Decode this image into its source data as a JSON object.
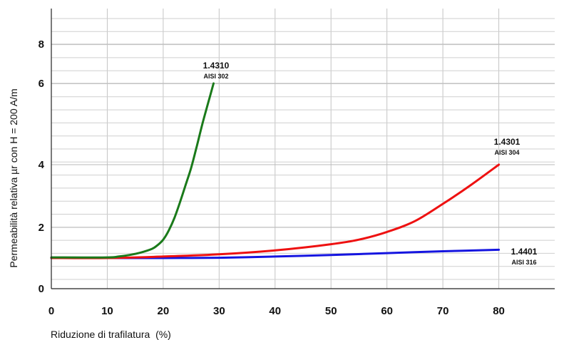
{
  "chart_data": {
    "type": "line",
    "title": "",
    "xlabel": "Riduzione di trafilatura  (%)",
    "ylabel": "Permeabilità relativa µr con H = 200 A/m",
    "xlim": [
      0,
      90
    ],
    "x_ticks": [
      0,
      10,
      20,
      30,
      40,
      50,
      60,
      70,
      80
    ],
    "y_ticks": [
      0,
      2,
      4,
      6,
      8
    ],
    "y_tick_labels": [
      "0",
      "2",
      "4",
      "6",
      "8"
    ],
    "grid": true,
    "series": [
      {
        "name": "1.4310",
        "subname": "AISI 302",
        "color": "#1a7a1a",
        "points": [
          [
            0,
            1.02
          ],
          [
            10,
            1.02
          ],
          [
            12,
            1.05
          ],
          [
            14,
            1.1
          ],
          [
            16,
            1.18
          ],
          [
            18,
            1.3
          ],
          [
            19,
            1.42
          ],
          [
            20,
            1.6
          ],
          [
            21,
            1.9
          ],
          [
            22,
            2.3
          ],
          [
            23,
            2.8
          ],
          [
            24,
            3.35
          ],
          [
            25,
            3.9
          ],
          [
            26,
            4.45
          ],
          [
            27,
            5.0
          ],
          [
            28,
            5.5
          ],
          [
            29,
            6.0
          ]
        ]
      },
      {
        "name": "1.4301",
        "subname": "AISI 304",
        "color": "#ee1111",
        "points": [
          [
            0,
            1.0
          ],
          [
            10,
            1.0
          ],
          [
            20,
            1.05
          ],
          [
            30,
            1.12
          ],
          [
            40,
            1.25
          ],
          [
            50,
            1.45
          ],
          [
            55,
            1.6
          ],
          [
            60,
            1.85
          ],
          [
            65,
            2.2
          ],
          [
            70,
            2.75
          ],
          [
            75,
            3.35
          ],
          [
            80,
            4.0
          ]
        ]
      },
      {
        "name": "1.4401",
        "subname": "AISI 316",
        "color": "#1515e0",
        "points": [
          [
            0,
            1.0
          ],
          [
            10,
            1.0
          ],
          [
            20,
            1.0
          ],
          [
            30,
            1.01
          ],
          [
            40,
            1.05
          ],
          [
            50,
            1.1
          ],
          [
            60,
            1.16
          ],
          [
            70,
            1.22
          ],
          [
            80,
            1.27
          ]
        ]
      }
    ]
  }
}
